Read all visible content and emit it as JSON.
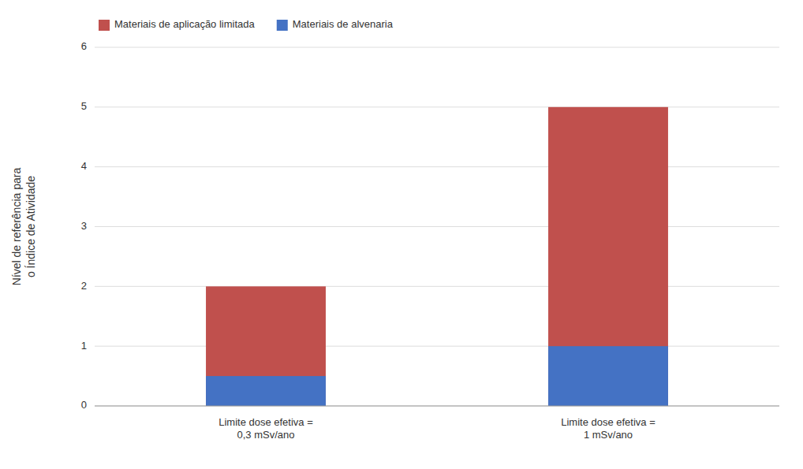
{
  "chart_data": {
    "type": "bar",
    "categories": [
      "Limite dose efetiva =\n0,3 mSv/ano",
      "Limite dose efetiva =\n1 mSv/ano"
    ],
    "series": [
      {
        "name": "Materiais de aplicação limitada",
        "color": "#C0504D",
        "values": [
          2.0,
          5.0
        ]
      },
      {
        "name": "Materiais de alvenaria",
        "color": "#4472C4",
        "values": [
          0.5,
          1.0
        ]
      }
    ],
    "ylabel": "Nível de referência para\no Índice de Atividade",
    "ylim": [
      0,
      6
    ],
    "yticks": [
      0,
      1,
      2,
      3,
      4,
      5,
      6
    ],
    "grid": true,
    "legend": "upper left"
  }
}
